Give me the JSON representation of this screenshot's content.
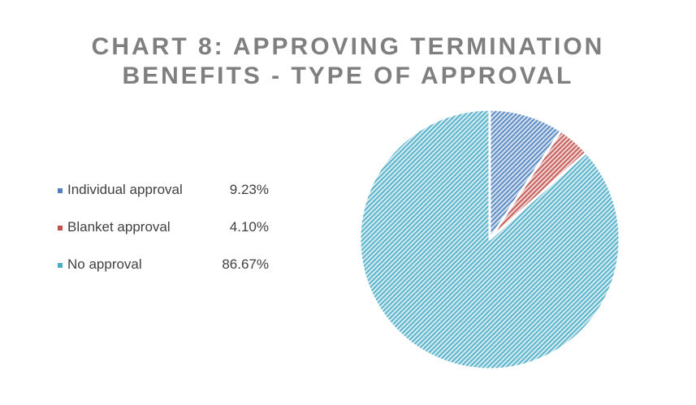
{
  "title_lines": [
    "CHART 8: APPROVING  TERMINATION",
    "BENEFITS - TYPE OF APPROVAL"
  ],
  "chart_data": {
    "type": "pie",
    "title": "CHART 8: APPROVING TERMINATION BENEFITS - TYPE OF APPROVAL",
    "legend_position": "left",
    "categories": [
      "Individual approval",
      "Blanket approval",
      "No approval"
    ],
    "values": [
      9.23,
      4.1,
      86.67
    ],
    "value_labels": [
      "9.23%",
      "4.10%",
      "86.67%"
    ],
    "colors": [
      "#4f81bd",
      "#c0504d",
      "#4bacc6"
    ]
  },
  "legend": {
    "items": [
      {
        "label": "Individual approval",
        "value": "9.23%",
        "color": "#4f81bd"
      },
      {
        "label": "Blanket approval",
        "value": "4.10%",
        "color": "#c0504d"
      },
      {
        "label": "No approval",
        "value": "86.67%",
        "color": "#4bacc6"
      }
    ]
  }
}
